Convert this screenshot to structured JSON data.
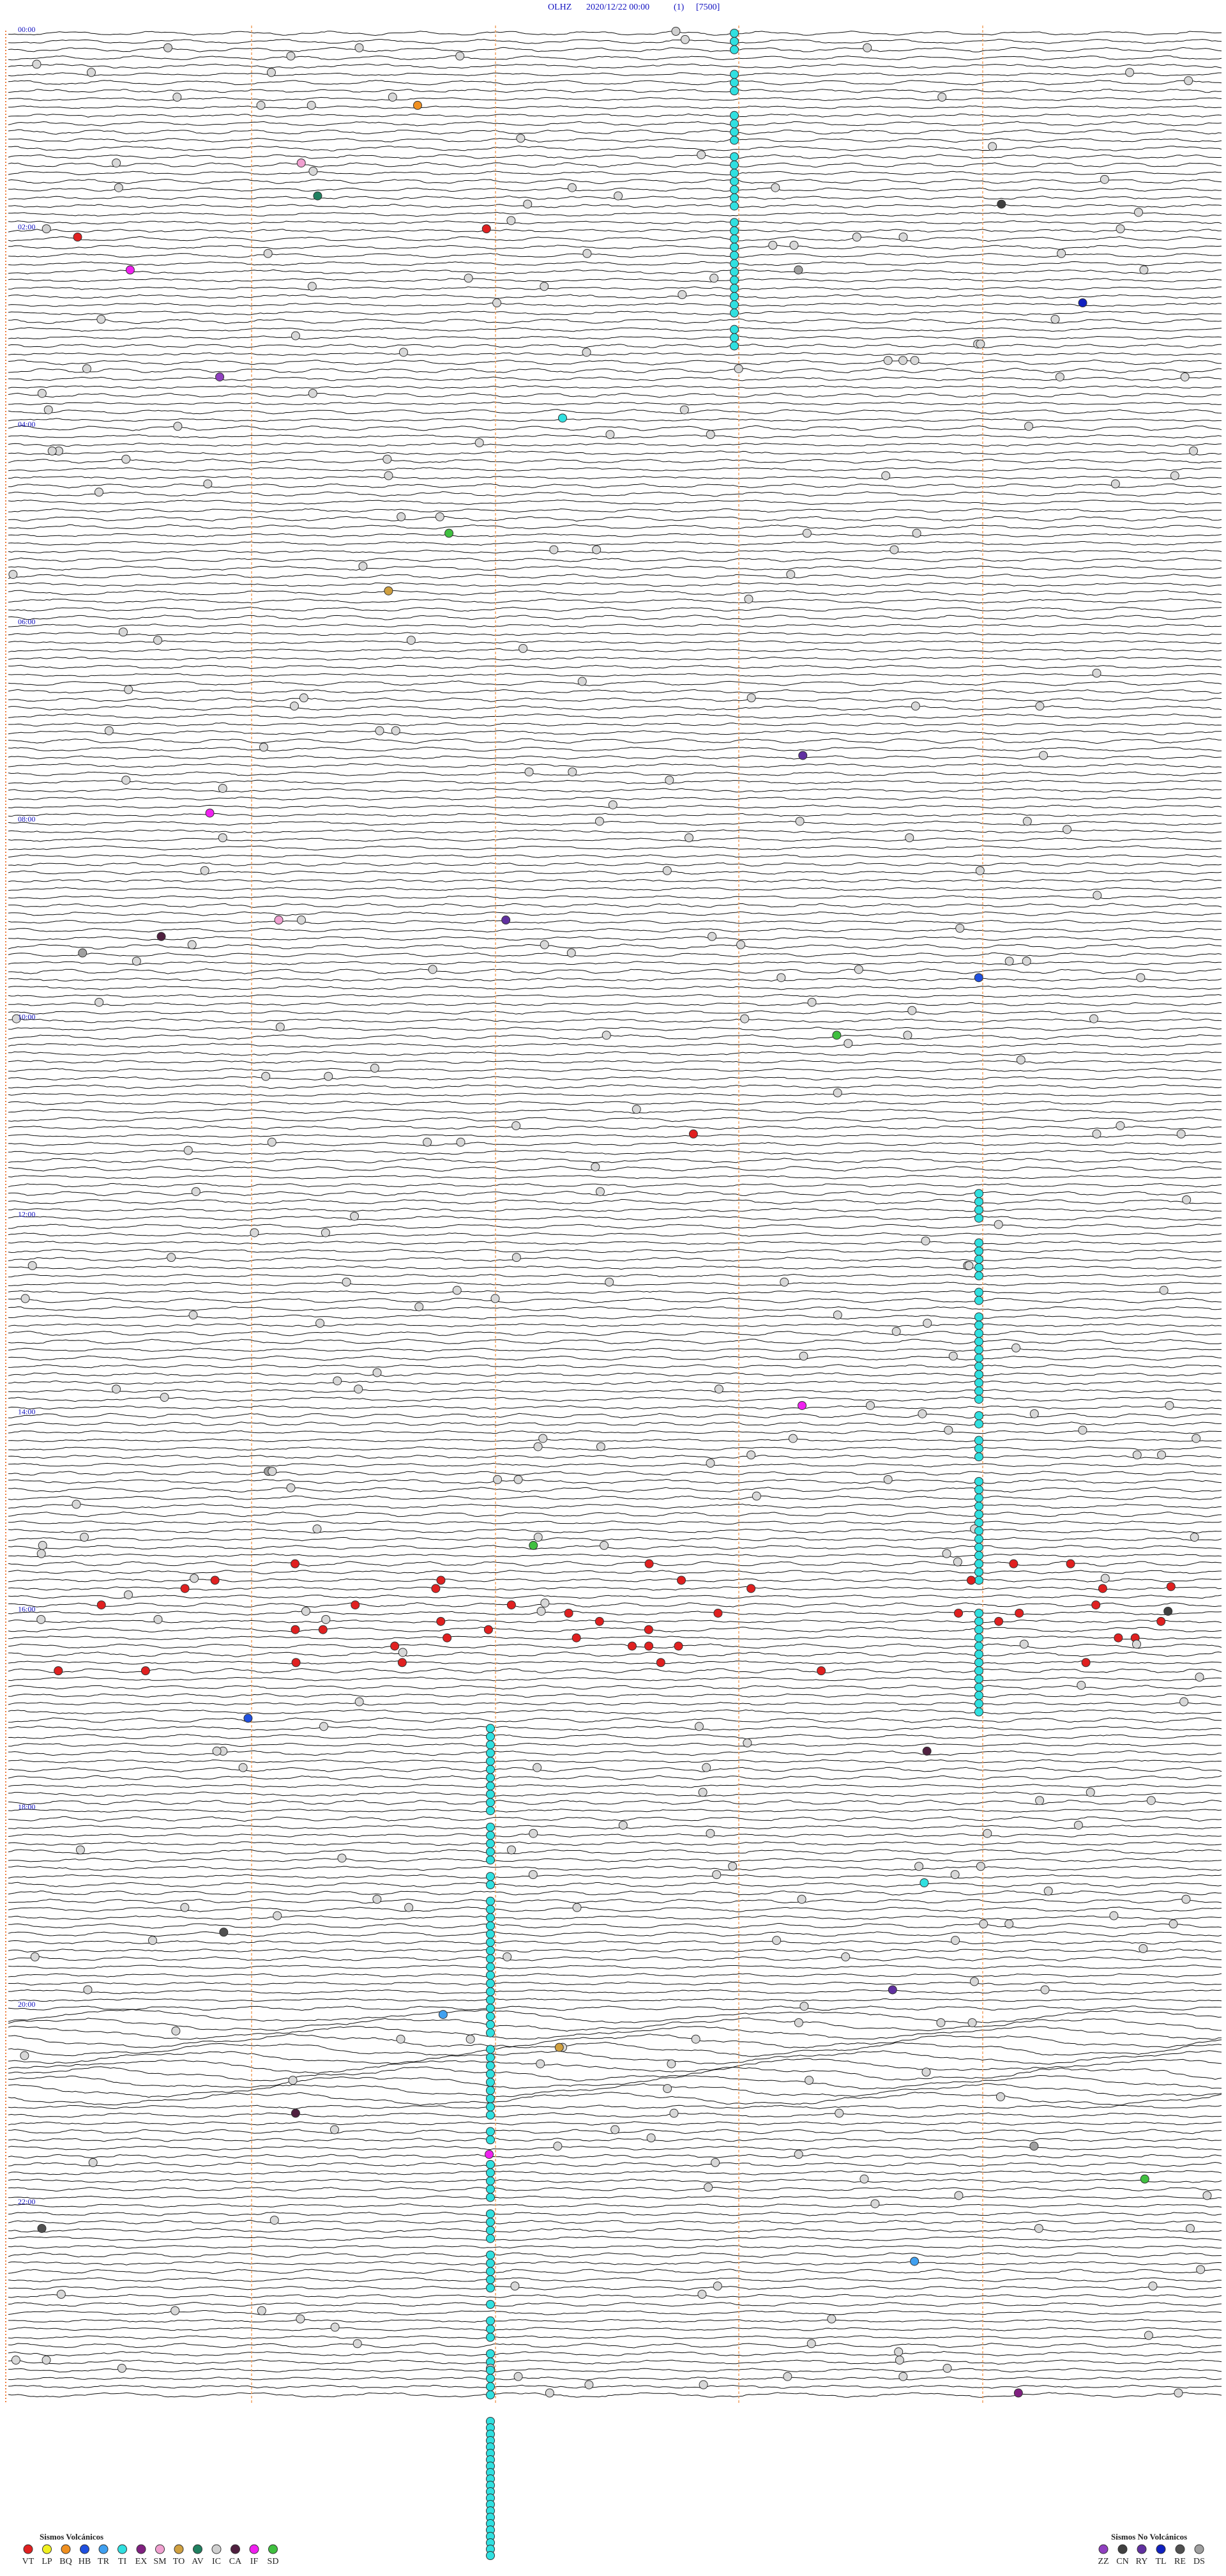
{
  "header": {
    "station": "OLHZ",
    "datetime": "2020/12/22 00:00",
    "index": "(1)",
    "scale": "[7500]"
  },
  "hour_labels": [
    "00:00",
    "02:00",
    "04:00",
    "06:00",
    "08:00",
    "10:00",
    "12:00",
    "14:00",
    "16:00",
    "18:00",
    "20:00",
    "22:00"
  ],
  "legend": {
    "volcanic_title": "Sismos Volcánicos",
    "volcanic": [
      {
        "code": "VT",
        "color": "#e02020"
      },
      {
        "code": "LP",
        "color": "#f0f020"
      },
      {
        "code": "BQ",
        "color": "#f09020"
      },
      {
        "code": "HB",
        "color": "#2050e0"
      },
      {
        "code": "TR",
        "color": "#40a0f0"
      },
      {
        "code": "TI",
        "color": "#30e0e0"
      },
      {
        "code": "EX",
        "color": "#802080"
      },
      {
        "code": "SM",
        "color": "#f0a0d0"
      },
      {
        "code": "TO",
        "color": "#d0a040"
      },
      {
        "code": "AV",
        "color": "#208060"
      },
      {
        "code": "IC",
        "color": "#d0d0d0"
      },
      {
        "code": "CA",
        "color": "#502040"
      },
      {
        "code": "IF",
        "color": "#f020f0"
      },
      {
        "code": "SD",
        "color": "#40c040"
      }
    ],
    "non_volcanic_title": "Sismos No Volcánicos",
    "non_volcanic": [
      {
        "code": "ZZ",
        "color": "#9040c0"
      },
      {
        "code": "CN",
        "color": "#404040"
      },
      {
        "code": "RY",
        "color": "#6030a0"
      },
      {
        "code": "TL",
        "color": "#1020c0"
      },
      {
        "code": "RE",
        "color": "#505050"
      },
      {
        "code": "DS",
        "color": "#a0a0a0"
      }
    ]
  }
}
